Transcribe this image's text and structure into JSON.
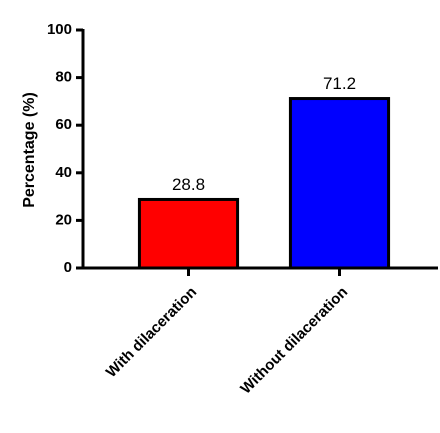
{
  "chart_data": {
    "type": "bar",
    "y_label": "Percentage (%)",
    "categories": [
      "With dilaceration",
      "Without dilaceration"
    ],
    "values": [
      28.8,
      71.2
    ],
    "colors": [
      "#ff0000",
      "#0000ff"
    ],
    "ylim": [
      0,
      100
    ],
    "yticks": [
      0,
      20,
      40,
      60,
      80,
      100
    ]
  }
}
